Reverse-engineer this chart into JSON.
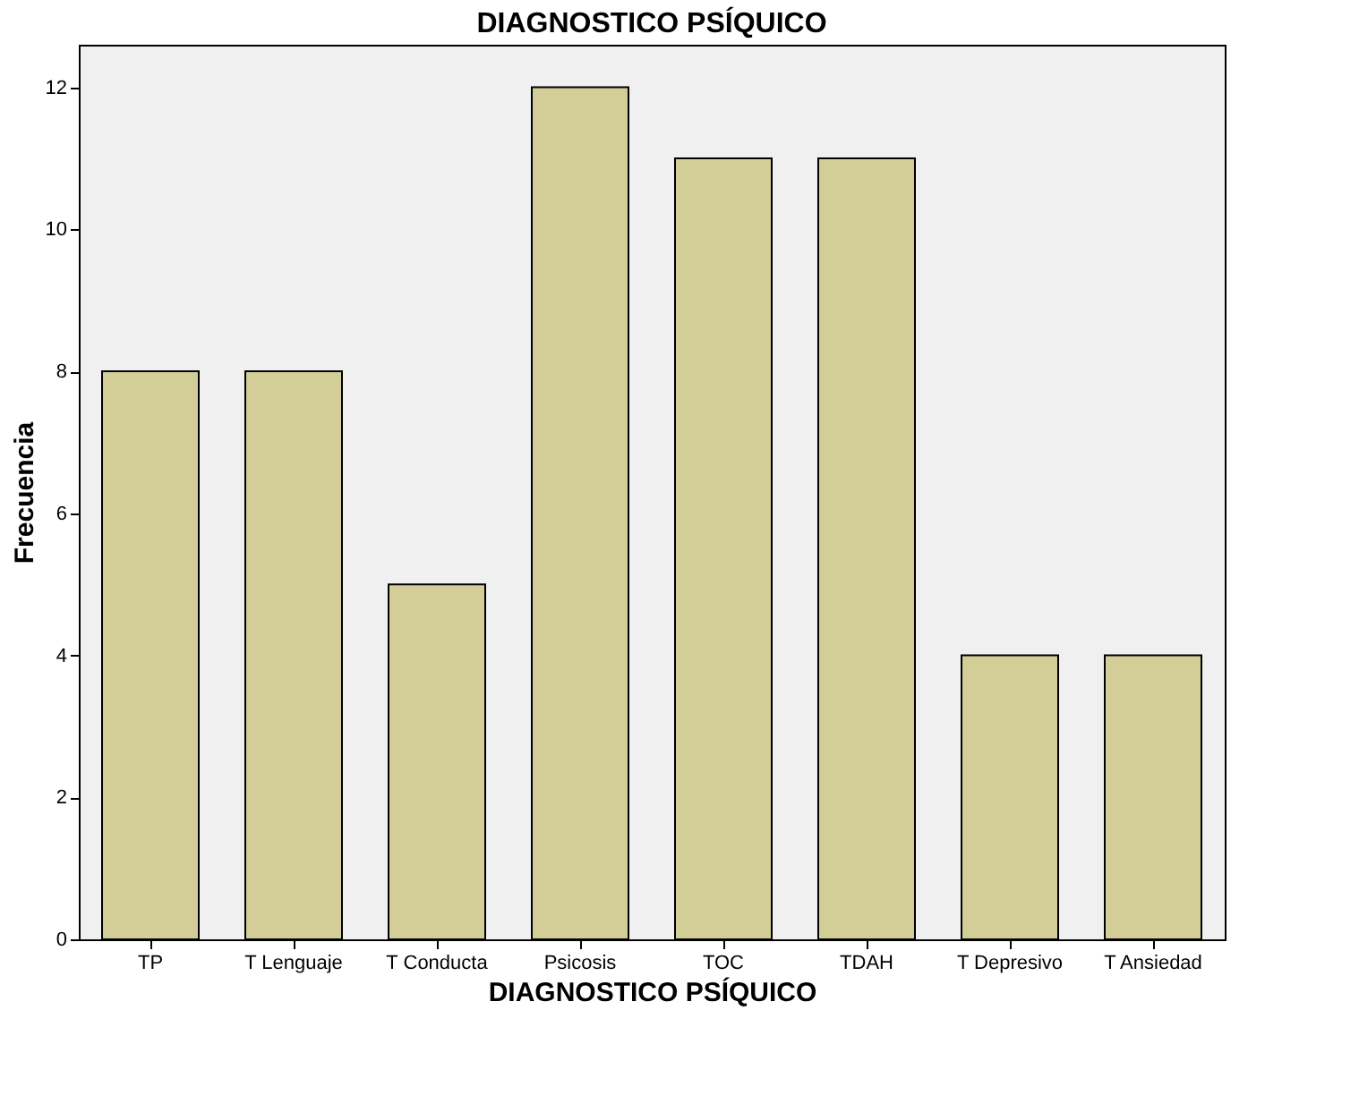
{
  "chart_data": {
    "type": "bar",
    "title": "DIAGNOSTICO PSÍQUICO",
    "xlabel": "DIAGNOSTICO PSÍQUICO",
    "ylabel": "Frecuencia",
    "categories": [
      "TP",
      "T Lenguaje",
      "T Conducta",
      "Psicosis",
      "TOC",
      "TDAH",
      "T Depresivo",
      "T Ansiedad"
    ],
    "values": [
      8,
      8,
      5,
      12,
      11,
      11,
      4,
      4
    ],
    "color": "#d3ce98",
    "ylim": [
      0,
      12.6
    ],
    "yticks": [
      0,
      2,
      4,
      6,
      8,
      10,
      12
    ],
    "grid": false
  }
}
